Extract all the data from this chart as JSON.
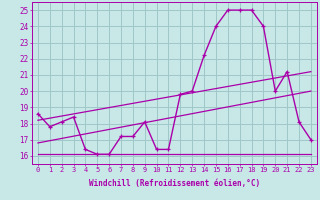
{
  "xlabel": "Windchill (Refroidissement éolien,°C)",
  "windchill": [
    18.6,
    17.8,
    18.1,
    18.4,
    16.4,
    16.1,
    16.1,
    17.2,
    17.2,
    18.1,
    16.4,
    16.4,
    19.8,
    20.0,
    22.2,
    24.0,
    25.0,
    25.0,
    25.0,
    24.0,
    20.0,
    21.2,
    18.1,
    17.0
  ],
  "trend_upper_start": 18.2,
  "trend_upper_end": 21.2,
  "trend_mid_start": 16.8,
  "trend_mid_end": 20.0,
  "trend_lower_start": 16.1,
  "trend_lower_end": 16.1,
  "color": "#aa00aa",
  "bg_color": "#c8e8e8",
  "grid_color": "#a0c8c8",
  "xlim": [
    -0.5,
    23.5
  ],
  "ylim": [
    15.5,
    25.5
  ],
  "yticks": [
    16,
    17,
    18,
    19,
    20,
    21,
    22,
    23,
    24,
    25
  ],
  "xlabel_fontsize": 5.5,
  "tick_fontsize": 5.0
}
